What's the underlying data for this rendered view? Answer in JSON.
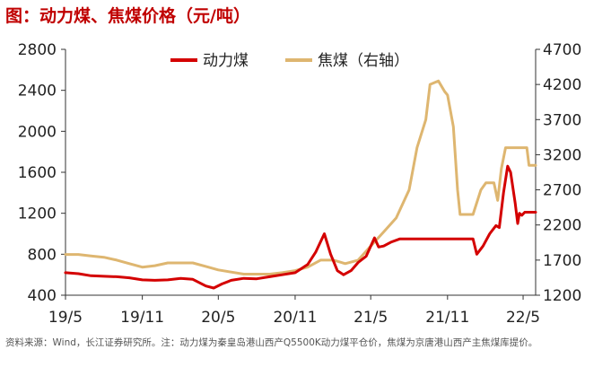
{
  "title": "图：动力煤、焦煤价格（元/吨）",
  "footnote": "资料来源：Wind，长江证券研究所。注：动力煤为秦皇岛港山西产Q5500K动力煤平仓价，焦煤为京唐港山西产主焦煤库提价。",
  "colors": {
    "thermal": "#d40000",
    "coking": "#deb670",
    "axis": "#333333"
  },
  "chart_data": {
    "type": "line",
    "title": "图：动力煤、焦煤价格（元/吨）",
    "x_tick_labels": [
      "19/5",
      "19/11",
      "20/5",
      "20/11",
      "21/5",
      "21/11",
      "22/5"
    ],
    "x_tick_dates": [
      "2019-05-01",
      "2019-11-01",
      "2020-05-01",
      "2020-11-01",
      "2021-05-01",
      "2021-11-01",
      "2022-05-01"
    ],
    "x_range": [
      "2019-05-01",
      "2022-05-31"
    ],
    "y_left": {
      "ticks": [
        "400",
        "800",
        "1200",
        "1600",
        "2000",
        "2400",
        "2800"
      ],
      "ylim": [
        400,
        2800
      ]
    },
    "y_right": {
      "ticks": [
        "1200",
        "1700",
        "2200",
        "2700",
        "3200",
        "3700",
        "4200",
        "4700"
      ],
      "ylim": [
        1200,
        4700
      ]
    },
    "legend_position": "top-center",
    "series": [
      {
        "name": "动力煤",
        "axis": "left",
        "color": "#d40000",
        "points": [
          [
            "2019-05-01",
            620
          ],
          [
            "2019-06-01",
            610
          ],
          [
            "2019-07-01",
            590
          ],
          [
            "2019-08-01",
            585
          ],
          [
            "2019-09-01",
            580
          ],
          [
            "2019-10-01",
            570
          ],
          [
            "2019-11-01",
            550
          ],
          [
            "2019-12-01",
            545
          ],
          [
            "2020-01-01",
            550
          ],
          [
            "2020-02-01",
            565
          ],
          [
            "2020-03-01",
            555
          ],
          [
            "2020-04-01",
            490
          ],
          [
            "2020-04-20",
            470
          ],
          [
            "2020-05-10",
            510
          ],
          [
            "2020-06-01",
            545
          ],
          [
            "2020-07-01",
            565
          ],
          [
            "2020-08-01",
            560
          ],
          [
            "2020-09-01",
            580
          ],
          [
            "2020-10-01",
            600
          ],
          [
            "2020-11-01",
            620
          ],
          [
            "2020-12-01",
            700
          ],
          [
            "2020-12-20",
            820
          ],
          [
            "2021-01-10",
            1000
          ],
          [
            "2021-01-25",
            800
          ],
          [
            "2021-02-10",
            640
          ],
          [
            "2021-02-25",
            600
          ],
          [
            "2021-03-15",
            640
          ],
          [
            "2021-04-01",
            720
          ],
          [
            "2021-04-20",
            780
          ],
          [
            "2021-05-10",
            960
          ],
          [
            "2021-05-20",
            870
          ],
          [
            "2021-06-01",
            880
          ],
          [
            "2021-06-20",
            920
          ],
          [
            "2021-07-10",
            950
          ],
          [
            "2021-08-01",
            950
          ],
          [
            "2021-09-01",
            950
          ],
          [
            "2021-10-01",
            950
          ],
          [
            "2021-11-01",
            950
          ],
          [
            "2021-12-01",
            950
          ],
          [
            "2022-01-01",
            950
          ],
          [
            "2022-01-10",
            800
          ],
          [
            "2022-01-25",
            880
          ],
          [
            "2022-02-10",
            1000
          ],
          [
            "2022-02-25",
            1080
          ],
          [
            "2022-03-05",
            1060
          ],
          [
            "2022-03-15",
            1400
          ],
          [
            "2022-03-25",
            1660
          ],
          [
            "2022-04-01",
            1600
          ],
          [
            "2022-04-12",
            1300
          ],
          [
            "2022-04-18",
            1100
          ],
          [
            "2022-04-22",
            1200
          ],
          [
            "2022-04-28",
            1180
          ],
          [
            "2022-05-05",
            1210
          ],
          [
            "2022-05-31",
            1210
          ]
        ]
      },
      {
        "name": "焦煤（右轴）",
        "axis": "right",
        "color": "#deb670",
        "points": [
          [
            "2019-05-01",
            1780
          ],
          [
            "2019-06-01",
            1780
          ],
          [
            "2019-07-01",
            1760
          ],
          [
            "2019-08-01",
            1740
          ],
          [
            "2019-09-01",
            1700
          ],
          [
            "2019-10-01",
            1650
          ],
          [
            "2019-11-01",
            1600
          ],
          [
            "2019-12-01",
            1620
          ],
          [
            "2020-01-01",
            1660
          ],
          [
            "2020-02-01",
            1660
          ],
          [
            "2020-03-01",
            1660
          ],
          [
            "2020-04-01",
            1610
          ],
          [
            "2020-05-01",
            1560
          ],
          [
            "2020-06-01",
            1530
          ],
          [
            "2020-07-01",
            1500
          ],
          [
            "2020-08-01",
            1500
          ],
          [
            "2020-09-01",
            1500
          ],
          [
            "2020-10-01",
            1520
          ],
          [
            "2020-11-01",
            1550
          ],
          [
            "2020-12-01",
            1600
          ],
          [
            "2021-01-01",
            1700
          ],
          [
            "2021-02-01",
            1700
          ],
          [
            "2021-03-01",
            1650
          ],
          [
            "2021-04-01",
            1700
          ],
          [
            "2021-05-01",
            1900
          ],
          [
            "2021-06-01",
            2100
          ],
          [
            "2021-07-01",
            2300
          ],
          [
            "2021-08-01",
            2700
          ],
          [
            "2021-08-20",
            3300
          ],
          [
            "2021-09-10",
            3700
          ],
          [
            "2021-09-20",
            4200
          ],
          [
            "2021-10-10",
            4250
          ],
          [
            "2021-10-25",
            4100
          ],
          [
            "2021-11-01",
            4050
          ],
          [
            "2021-11-15",
            3600
          ],
          [
            "2021-11-25",
            2700
          ],
          [
            "2021-12-01",
            2350
          ],
          [
            "2022-01-01",
            2350
          ],
          [
            "2022-01-20",
            2700
          ],
          [
            "2022-02-01",
            2800
          ],
          [
            "2022-02-20",
            2800
          ],
          [
            "2022-03-01",
            2550
          ],
          [
            "2022-03-10",
            3000
          ],
          [
            "2022-03-20",
            3300
          ],
          [
            "2022-04-01",
            3300
          ],
          [
            "2022-04-20",
            3300
          ],
          [
            "2022-05-10",
            3300
          ],
          [
            "2022-05-15",
            3050
          ],
          [
            "2022-05-31",
            3050
          ]
        ]
      }
    ]
  }
}
